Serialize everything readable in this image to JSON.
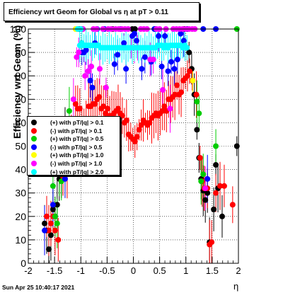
{
  "title": "Efficiency wrt Geom for Global vs   η at pT > 0.11",
  "timestamp": "Sun Apr 25 10:40:17 2021",
  "chart_data": {
    "type": "scatter",
    "xlabel": "η",
    "ylabel": "Efficiency wrt Geom (%)",
    "xlim": [
      -2,
      2
    ],
    "ylim": [
      0,
      100
    ],
    "x_ticks": [
      "-2",
      "-1.5",
      "-1",
      "-0.5",
      "0",
      "0.5",
      "1",
      "1.5",
      "2"
    ],
    "y_ticks": [
      "0",
      "10",
      "20",
      "30",
      "40",
      "50",
      "60",
      "70",
      "80",
      "90",
      "100"
    ],
    "grid": true,
    "legend_position": "mid-left",
    "series": [
      {
        "name": "(+) with pT/|q| > 0.1",
        "color": "#000000",
        "points": [
          [
            -1.69,
            17
          ],
          [
            -1.65,
            14
          ],
          [
            -1.61,
            6
          ],
          [
            -1.57,
            12
          ],
          [
            -1.53,
            23
          ],
          [
            -1.49,
            20
          ],
          [
            -1.45,
            25
          ],
          [
            -1.41,
            36
          ],
          [
            -1.37,
            36
          ],
          [
            -1.3,
            60
          ],
          [
            -1.06,
            100
          ],
          [
            -1.02,
            100
          ],
          [
            -0.97,
            100
          ],
          [
            -0.4,
            100
          ],
          [
            -0.02,
            100
          ],
          [
            0.03,
            100
          ],
          [
            0.42,
            100
          ],
          [
            0.97,
            100
          ],
          [
            1.02,
            100
          ],
          [
            1.06,
            90
          ],
          [
            1.11,
            83
          ],
          [
            1.16,
            72
          ],
          [
            1.21,
            57
          ],
          [
            1.25,
            45
          ],
          [
            1.29,
            36
          ],
          [
            1.33,
            31
          ],
          [
            1.37,
            27
          ],
          [
            1.41,
            30
          ],
          [
            1.45,
            9
          ],
          [
            1.53,
            23
          ],
          [
            1.57,
            42
          ],
          [
            1.61,
            32
          ],
          [
            1.69,
            20
          ],
          [
            1.97,
            50
          ]
        ]
      },
      {
        "name": "(-) with pT/|q| > 0.1",
        "color": "#ff0000",
        "points": [
          [
            -1.65,
            20
          ],
          [
            -1.61,
            14
          ],
          [
            -1.57,
            17
          ],
          [
            -1.53,
            20
          ],
          [
            -1.49,
            14
          ],
          [
            -1.43,
            10
          ],
          [
            -1.34,
            37
          ],
          [
            -1.26,
            38
          ],
          [
            -1.18,
            58
          ],
          [
            -1.1,
            68
          ],
          [
            -1.06,
            66
          ],
          [
            -1.02,
            66
          ],
          [
            -0.98,
            60
          ],
          [
            -0.94,
            60
          ],
          [
            -0.9,
            61
          ],
          [
            -0.85,
            67
          ],
          [
            -0.81,
            67
          ],
          [
            -0.77,
            68
          ],
          [
            -0.73,
            68
          ],
          [
            -0.69,
            70
          ],
          [
            -0.65,
            71
          ],
          [
            -0.61,
            66
          ],
          [
            -0.57,
            67
          ],
          [
            -0.53,
            64
          ],
          [
            -0.49,
            66
          ],
          [
            -0.45,
            63
          ],
          [
            -0.41,
            63
          ],
          [
            -0.37,
            64
          ],
          [
            -0.33,
            65
          ],
          [
            -0.29,
            66
          ],
          [
            -0.25,
            64
          ],
          [
            -0.21,
            63
          ],
          [
            -0.17,
            60
          ],
          [
            -0.13,
            61
          ],
          [
            -0.09,
            55
          ],
          [
            -0.05,
            54
          ],
          [
            -0.01,
            53
          ],
          [
            0.03,
            52
          ],
          [
            0.07,
            54
          ],
          [
            0.11,
            57
          ],
          [
            0.15,
            59
          ],
          [
            0.19,
            61
          ],
          [
            0.23,
            60
          ],
          [
            0.27,
            59
          ],
          [
            0.31,
            60
          ],
          [
            0.35,
            62
          ],
          [
            0.39,
            63
          ],
          [
            0.43,
            64
          ],
          [
            0.47,
            63
          ],
          [
            0.51,
            64
          ],
          [
            0.55,
            65
          ],
          [
            0.59,
            67
          ],
          [
            0.63,
            65
          ],
          [
            0.67,
            70
          ],
          [
            0.71,
            70
          ],
          [
            0.75,
            71
          ],
          [
            0.79,
            72
          ],
          [
            0.83,
            76
          ],
          [
            0.87,
            72
          ],
          [
            0.91,
            73
          ],
          [
            0.95,
            78
          ],
          [
            0.99,
            79
          ],
          [
            1.03,
            80
          ],
          [
            1.07,
            82
          ],
          [
            1.12,
            78
          ],
          [
            1.2,
            72
          ],
          [
            1.27,
            45
          ],
          [
            1.31,
            35
          ],
          [
            1.35,
            32
          ],
          [
            1.41,
            32
          ],
          [
            1.45,
            8
          ],
          [
            1.49,
            9
          ],
          [
            1.57,
            30
          ],
          [
            1.65,
            33
          ],
          [
            1.73,
            33
          ],
          [
            1.89,
            25
          ]
        ]
      },
      {
        "name": "(+) with pT/|q| > 0.5",
        "color": "#00cc00",
        "points": [
          [
            -1.53,
            33
          ],
          [
            -1.49,
            20
          ],
          [
            -1.45,
            17
          ],
          [
            -1.41,
            38
          ],
          [
            -1.37,
            35
          ],
          [
            -1.22,
            65
          ],
          [
            1.21,
            69
          ],
          [
            1.25,
            64
          ],
          [
            1.29,
            35
          ],
          [
            1.33,
            38
          ],
          [
            1.57,
            50
          ],
          [
            1.97,
            100
          ]
        ]
      },
      {
        "name": "(-) with pT/|q| > 0.5",
        "color": "#0000ff",
        "points": [
          [
            -1.69,
            14
          ],
          [
            -1.53,
            25
          ],
          [
            -1.3,
            36
          ],
          [
            -1.02,
            100
          ],
          [
            -0.98,
            90
          ],
          [
            -0.94,
            90
          ],
          [
            -0.9,
            91
          ],
          [
            -0.86,
            82
          ],
          [
            -0.82,
            78
          ],
          [
            -0.78,
            75
          ],
          [
            -0.73,
            94
          ],
          [
            -0.69,
            100
          ],
          [
            -0.55,
            100
          ],
          [
            -0.36,
            85
          ],
          [
            -0.3,
            89
          ],
          [
            -0.24,
            100
          ],
          [
            -0.18,
            94
          ],
          [
            -0.14,
            83
          ],
          [
            -0.02,
            97
          ],
          [
            0.02,
            98
          ],
          [
            0.06,
            95
          ],
          [
            0.16,
            83
          ],
          [
            0.22,
            88
          ],
          [
            0.34,
            86
          ],
          [
            0.4,
            100
          ],
          [
            0.48,
            97
          ],
          [
            0.54,
            84
          ],
          [
            0.6,
            97
          ],
          [
            0.66,
            82
          ],
          [
            0.72,
            86
          ],
          [
            0.78,
            83
          ],
          [
            0.84,
            87
          ],
          [
            0.9,
            98
          ],
          [
            0.96,
            95
          ],
          [
            1.02,
            100
          ],
          [
            1.33,
            100
          ],
          [
            1.41,
            36
          ],
          [
            1.57,
            100
          ]
        ]
      },
      {
        "name": "(+) with pT/|q| > 1.0",
        "color": "#ffff00",
        "points": [
          [
            -1.1,
            100
          ],
          [
            -1.06,
            100
          ],
          [
            1.13,
            78
          ]
        ]
      },
      {
        "name": "(-) with pT/|q| > 1.0",
        "color": "#ff00ff",
        "points": [
          [
            -1.14,
            70
          ],
          [
            -1.08,
            88
          ],
          [
            -1.04,
            90
          ],
          [
            -1.0,
            100
          ],
          [
            -0.96,
            100
          ],
          [
            -0.92,
            80
          ],
          [
            -0.86,
            82
          ],
          [
            -0.8,
            84
          ],
          [
            -0.76,
            100
          ],
          [
            -0.7,
            100
          ],
          [
            -0.64,
            83
          ],
          [
            -0.58,
            100
          ],
          [
            -0.52,
            75
          ],
          [
            -0.48,
            100
          ],
          [
            -0.42,
            100
          ],
          [
            -0.34,
            100
          ],
          [
            -0.28,
            100
          ],
          [
            -0.22,
            100
          ],
          [
            -0.16,
            100
          ],
          [
            -0.1,
            100
          ],
          [
            -0.04,
            92
          ],
          [
            0.02,
            92
          ],
          [
            0.08,
            92
          ],
          [
            0.14,
            100
          ],
          [
            0.2,
            100
          ],
          [
            0.26,
            100
          ],
          [
            0.32,
            87
          ],
          [
            0.38,
            87
          ],
          [
            0.44,
            100
          ],
          [
            0.5,
            100
          ],
          [
            0.56,
            74
          ],
          [
            0.62,
            100
          ],
          [
            0.7,
            66
          ],
          [
            0.76,
            100
          ],
          [
            0.82,
            100
          ],
          [
            0.88,
            100
          ],
          [
            0.94,
            100
          ],
          [
            1.0,
            100
          ],
          [
            1.06,
            100
          ],
          [
            1.12,
            100
          ],
          [
            1.17,
            100
          ],
          [
            1.37,
            32
          ]
        ]
      },
      {
        "name": "(+) with pT/|q| > 2.0",
        "color": "#00ffff",
        "points": [
          [
            -1.0,
            100
          ],
          [
            -1.06,
            100
          ],
          [
            -1.02,
            93
          ],
          [
            -0.98,
            94
          ],
          [
            -0.94,
            93
          ],
          [
            -0.9,
            93
          ],
          [
            -0.86,
            93
          ],
          [
            -0.82,
            93
          ],
          [
            -0.78,
            93
          ],
          [
            -0.74,
            93
          ],
          [
            -0.7,
            93
          ],
          [
            -0.66,
            93
          ],
          [
            -0.62,
            92
          ],
          [
            -0.58,
            92
          ],
          [
            -0.54,
            92
          ],
          [
            -0.5,
            92
          ],
          [
            -0.46,
            92
          ],
          [
            -0.42,
            92
          ],
          [
            -0.38,
            92
          ],
          [
            -0.34,
            92
          ],
          [
            -0.3,
            92
          ],
          [
            -0.26,
            92
          ],
          [
            -0.22,
            92
          ],
          [
            -0.18,
            92
          ],
          [
            -0.14,
            92
          ],
          [
            -0.1,
            92
          ],
          [
            -0.06,
            92
          ],
          [
            -0.02,
            92
          ],
          [
            0.02,
            92
          ],
          [
            0.06,
            92
          ],
          [
            0.1,
            92
          ],
          [
            0.14,
            92
          ],
          [
            0.18,
            92
          ],
          [
            0.22,
            92
          ],
          [
            0.26,
            92
          ],
          [
            0.3,
            92
          ],
          [
            0.34,
            92
          ],
          [
            0.38,
            92
          ],
          [
            0.42,
            92
          ],
          [
            0.46,
            93
          ],
          [
            0.5,
            93
          ],
          [
            0.54,
            93
          ],
          [
            0.58,
            92
          ],
          [
            0.62,
            93
          ],
          [
            0.66,
            92
          ],
          [
            0.7,
            93
          ],
          [
            0.74,
            93
          ],
          [
            0.78,
            93
          ],
          [
            0.82,
            93
          ],
          [
            0.86,
            93
          ],
          [
            0.9,
            93
          ],
          [
            0.94,
            92
          ],
          [
            0.98,
            93
          ],
          [
            1.02,
            92
          ]
        ]
      }
    ]
  }
}
